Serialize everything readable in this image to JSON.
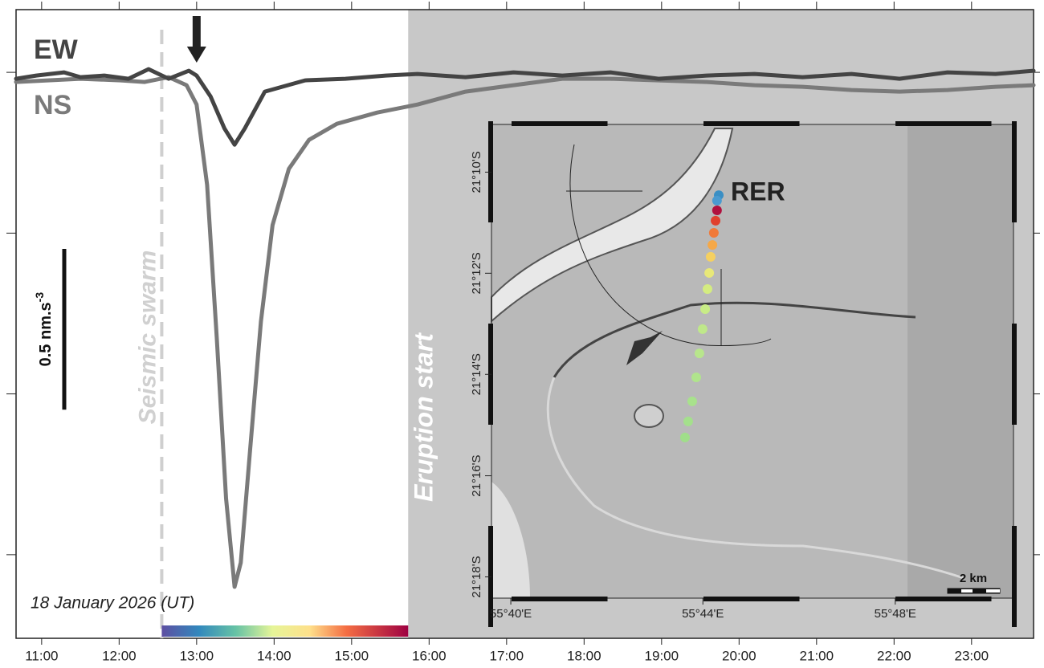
{
  "chart_data": {
    "type": "line",
    "date_label": "18 January 2026 (UT)",
    "xlim": [
      10.67,
      23.8
    ],
    "ylim": [
      -1.76,
      0.195
    ],
    "xticks": [
      {
        "value": 11,
        "label": "11:00"
      },
      {
        "value": 12,
        "label": "12:00"
      },
      {
        "value": 13,
        "label": "13:00"
      },
      {
        "value": 14,
        "label": "14:00"
      },
      {
        "value": 15,
        "label": "15:00"
      },
      {
        "value": 16,
        "label": "16:00"
      },
      {
        "value": 17,
        "label": "17:00"
      },
      {
        "value": 18,
        "label": "18:00"
      },
      {
        "value": 19,
        "label": "19:00"
      },
      {
        "value": 20,
        "label": "20:00"
      },
      {
        "value": 21,
        "label": "21:00"
      },
      {
        "value": 22,
        "label": "22:00"
      },
      {
        "value": 23,
        "label": "23:00"
      }
    ],
    "yticks": [
      0,
      -0.5,
      -1,
      -1.5
    ],
    "series": [
      {
        "name": "EW",
        "color": "#444444",
        "x": [
          10.67,
          10.93,
          11.29,
          11.5,
          11.81,
          12.12,
          12.38,
          12.64,
          12.9,
          13.0,
          13.18,
          13.36,
          13.49,
          13.62,
          13.88,
          14.4,
          14.92,
          15.44,
          15.85,
          16.47,
          17.09,
          17.72,
          18.34,
          18.96,
          19.58,
          20.2,
          20.82,
          21.45,
          22.07,
          22.69,
          23.31,
          23.8
        ],
        "values": [
          -0.02,
          -0.01,
          0,
          -0.015,
          -0.01,
          -0.02,
          0.01,
          -0.02,
          0.005,
          -0.01,
          -0.075,
          -0.175,
          -0.225,
          -0.175,
          -0.06,
          -0.025,
          -0.02,
          -0.01,
          -0.005,
          -0.015,
          0,
          -0.01,
          0,
          -0.02,
          -0.01,
          -0.005,
          -0.015,
          -0.005,
          -0.02,
          0,
          -0.005,
          0.005
        ]
      },
      {
        "name": "NS",
        "color": "#7a7a7a",
        "x": [
          10.67,
          11.08,
          11.5,
          12.02,
          12.33,
          12.64,
          12.87,
          13.0,
          13.135,
          13.26,
          13.38,
          13.49,
          13.57,
          13.69,
          13.83,
          13.98,
          14.19,
          14.45,
          14.81,
          15.33,
          15.85,
          16.47,
          17.09,
          17.72,
          18.34,
          18.96,
          19.58,
          20.2,
          20.82,
          21.45,
          22.07,
          22.69,
          23.31,
          23.8
        ],
        "values": [
          -0.03,
          -0.025,
          -0.02,
          -0.025,
          -0.03,
          -0.015,
          -0.04,
          -0.1,
          -0.35,
          -0.825,
          -1.325,
          -1.6,
          -1.525,
          -1.175,
          -0.775,
          -0.475,
          -0.3,
          -0.21,
          -0.16,
          -0.125,
          -0.1,
          -0.06,
          -0.04,
          -0.02,
          -0.02,
          -0.025,
          -0.03,
          -0.04,
          -0.045,
          -0.055,
          -0.06,
          -0.055,
          -0.045,
          -0.04
        ]
      }
    ],
    "events": [
      {
        "label": "Seismic swarm",
        "x": 12.55
      },
      {
        "label": "Eruption start",
        "x": 15.73
      }
    ],
    "arrow_x": 13.0,
    "scale_bar": {
      "value": 0.5,
      "label": "0.5 nm.s",
      "label_superscript": "-3"
    },
    "inset": {
      "lon_lim": [
        55.66,
        55.841
      ],
      "lat_lim": [
        -21.307,
        -21.151
      ],
      "lon_ticks": [
        {
          "value": 55.6667,
          "label": "55°40'E"
        },
        {
          "value": 55.7333,
          "label": "55°44'E"
        },
        {
          "value": 55.8,
          "label": "55°48'E"
        }
      ],
      "lat_ticks": [
        {
          "value": -21.1667,
          "label": "21°10'S"
        },
        {
          "value": -21.2,
          "label": "21°12'S"
        },
        {
          "value": -21.2333,
          "label": "21°14'S"
        },
        {
          "value": -21.2667,
          "label": "21°16'S"
        },
        {
          "value": -21.3,
          "label": "21°18'S"
        }
      ],
      "station": "RER",
      "scale_label": "2 km",
      "track": {
        "lon": [
          55.7388,
          55.7382,
          55.7382,
          55.7377,
          55.7371,
          55.7366,
          55.736,
          55.7355,
          55.7349,
          55.7341,
          55.7332,
          55.7321,
          55.731,
          55.7296,
          55.7282,
          55.7271
        ],
        "lat": [
          -21.1743,
          -21.1761,
          -21.1793,
          -21.1827,
          -21.1867,
          -21.1907,
          -21.1946,
          -21.1999,
          -21.2052,
          -21.2118,
          -21.2184,
          -21.2264,
          -21.2343,
          -21.2422,
          -21.2488,
          -21.2541
        ],
        "colors": [
          "#3b8fc4",
          "#4a9ad0",
          "#b0103e",
          "#e0402e",
          "#f07a3a",
          "#f5a848",
          "#f5d060",
          "#e8e878",
          "#d4ec80",
          "#c8ec86",
          "#bfe88a",
          "#b8e68c",
          "#b0e48c",
          "#a8e28c",
          "#a4e08c",
          "#a0de8a"
        ]
      }
    }
  }
}
